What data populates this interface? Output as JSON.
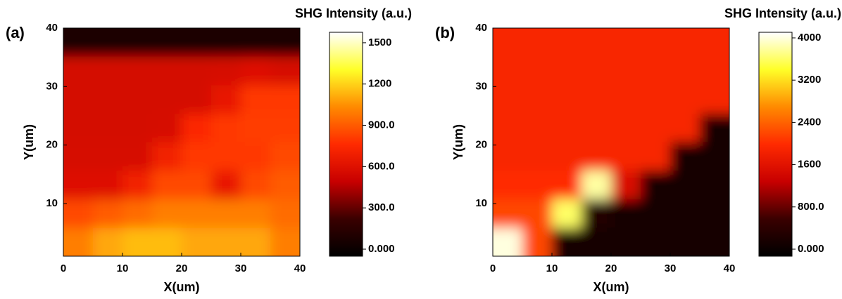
{
  "chart_data": [
    {
      "type": "heatmap",
      "panel_label": "(a)",
      "x_label": "X(um)",
      "y_label": "Y(um)",
      "colorbar_label": "SHG Intensity (a.u.)",
      "xlim": [
        0,
        40
      ],
      "ylim": [
        1,
        40
      ],
      "xticks": [
        0,
        10,
        20,
        30,
        40
      ],
      "yticks": [
        10,
        20,
        30,
        40
      ],
      "x": [
        2.5,
        7.5,
        12.5,
        17.5,
        22.5,
        27.5,
        32.5,
        37.5
      ],
      "y": [
        37.6,
        32.7,
        27.8,
        22.9,
        18.1,
        13.2,
        8.3,
        3.4
      ],
      "values": [
        [
          80,
          80,
          80,
          80,
          80,
          80,
          80,
          80
        ],
        [
          550,
          550,
          550,
          550,
          550,
          560,
          600,
          560
        ],
        [
          550,
          550,
          550,
          550,
          550,
          650,
          800,
          800
        ],
        [
          550,
          550,
          550,
          560,
          750,
          800,
          820,
          820
        ],
        [
          560,
          560,
          560,
          700,
          800,
          800,
          800,
          850
        ],
        [
          600,
          600,
          700,
          850,
          850,
          650,
          850,
          900
        ],
        [
          850,
          900,
          950,
          1000,
          1000,
          1000,
          1000,
          950
        ],
        [
          1000,
          1100,
          1150,
          1150,
          1100,
          1100,
          1100,
          1000
        ]
      ],
      "clim": [
        -51,
        1576
      ],
      "cticks": [
        {
          "value": 0,
          "label": "0.000"
        },
        {
          "value": 300,
          "label": "300.0"
        },
        {
          "value": 600,
          "label": "600.0"
        },
        {
          "value": 900,
          "label": "900.0"
        },
        1200,
        1500
      ],
      "colormap": [
        "#000000",
        "#3a0000",
        "#c80000",
        "#ff2a00",
        "#ff8a00",
        "#ffff28",
        "#ffffff"
      ]
    },
    {
      "type": "heatmap",
      "panel_label": "(b)",
      "x_label": "X(um)",
      "y_label": "Y(um)",
      "colorbar_label": "SHG Intensity (a.u.)",
      "xlim": [
        0,
        40
      ],
      "ylim": [
        1,
        40
      ],
      "xticks": [
        0,
        10,
        20,
        30,
        40
      ],
      "yticks": [
        10,
        20,
        30,
        40
      ],
      "x": [
        2.5,
        7.5,
        12.5,
        17.5,
        22.5,
        27.5,
        32.5,
        37.5
      ],
      "y": [
        37.6,
        32.7,
        27.8,
        22.9,
        18.1,
        13.2,
        8.3,
        3.4
      ],
      "values": [
        [
          1900,
          1900,
          1900,
          1900,
          1900,
          1900,
          1900,
          1900
        ],
        [
          1900,
          1900,
          1900,
          1900,
          1900,
          1900,
          1900,
          1900
        ],
        [
          1900,
          1900,
          1900,
          1900,
          1900,
          1900,
          1900,
          1900
        ],
        [
          1900,
          1900,
          1900,
          1900,
          1900,
          1900,
          1900,
          100
        ],
        [
          1900,
          1900,
          1900,
          1900,
          1900,
          1900,
          100,
          100
        ],
        [
          2000,
          2000,
          2000,
          3800,
          1500,
          100,
          100,
          100
        ],
        [
          2200,
          2200,
          3600,
          300,
          100,
          100,
          100,
          100
        ],
        [
          4000,
          2200,
          100,
          100,
          100,
          100,
          100,
          100
        ]
      ],
      "clim": [
        -133,
        4106
      ],
      "cticks": [
        {
          "value": 0,
          "label": "0.000"
        },
        {
          "value": 800,
          "label": "800.0"
        },
        1600,
        2400,
        3200,
        4000
      ],
      "colormap": [
        "#000000",
        "#3a0000",
        "#c80000",
        "#ff2a00",
        "#ff8a00",
        "#ffff28",
        "#ffffff"
      ]
    }
  ]
}
